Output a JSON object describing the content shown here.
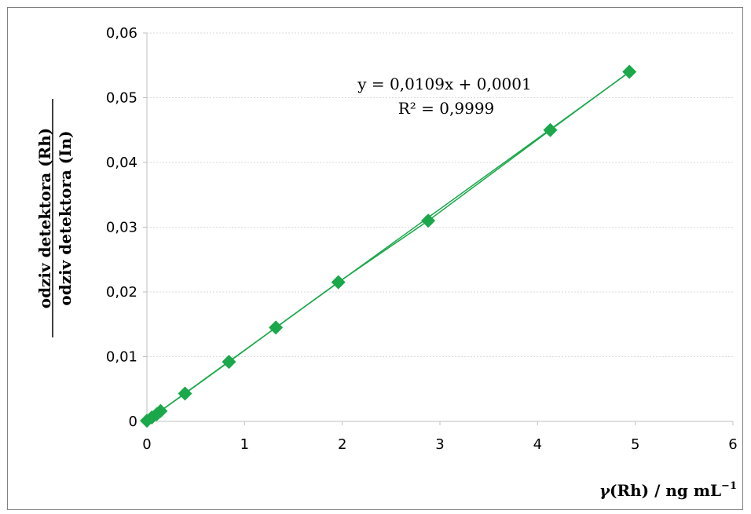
{
  "chart_data": {
    "type": "scatter",
    "title": "",
    "xlabel": {
      "symbol": "γ",
      "rest": "(Rh) / ng mL",
      "superscript": "−1"
    },
    "ylabel": {
      "numerator": "odziv detektora (Rh)",
      "denominator": "odziv detektora (In)"
    },
    "xlim": [
      0,
      6
    ],
    "ylim": [
      0,
      0.06
    ],
    "x_ticks": [
      0,
      1,
      2,
      3,
      4,
      5,
      6
    ],
    "x_tick_labels": [
      "0",
      "1",
      "2",
      "3",
      "4",
      "5",
      "6"
    ],
    "y_ticks": [
      0,
      0.01,
      0.02,
      0.03,
      0.04,
      0.05,
      0.06
    ],
    "y_tick_labels": [
      "0",
      "0,01",
      "0,02",
      "0,03",
      "0,04",
      "0,05",
      "0,06"
    ],
    "grid": {
      "horizontal": true,
      "vertical": false
    },
    "series": [
      {
        "marker": "diamond",
        "color": "#1aa84a",
        "x": [
          0,
          0.05,
          0.1,
          0.14,
          0.39,
          0.84,
          1.32,
          1.96,
          2.88,
          4.13,
          4.94
        ],
        "y": [
          0.0001,
          0.0006,
          0.0011,
          0.0016,
          0.0043,
          0.0092,
          0.0145,
          0.0215,
          0.031,
          0.045,
          0.054
        ]
      }
    ],
    "trendline": {
      "type": "linear",
      "slope": 0.0109,
      "intercept": 0.0001,
      "x_range": [
        0,
        4.94
      ],
      "color": "#1aa84a",
      "equation": "y = 0,0109x + 0,0001",
      "r_squared": "R² = 0,9999"
    },
    "colors": {
      "series": "#1aa84a",
      "grid": "#d9d9d9",
      "axis": "#bfbfbf",
      "border": "#808080"
    }
  }
}
